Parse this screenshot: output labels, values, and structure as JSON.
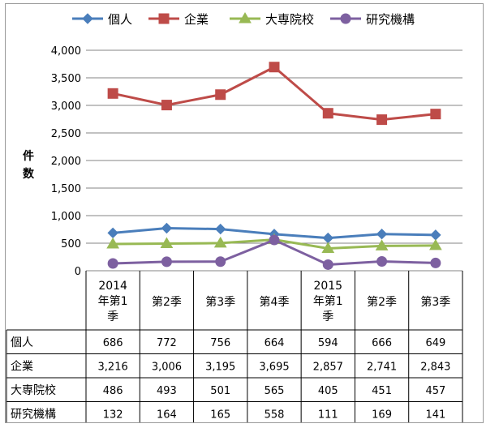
{
  "chart_data": {
    "type": "line",
    "categories": [
      [
        "2014",
        "年第1",
        "季"
      ],
      [
        "第2季"
      ],
      [
        "第3季"
      ],
      [
        "第4季"
      ],
      [
        "2015",
        "年第1",
        "季"
      ],
      [
        "第2季"
      ],
      [
        "第3季"
      ]
    ],
    "ylabel": [
      "件",
      "数"
    ],
    "ylim": [
      0,
      4000
    ],
    "yticks": [
      0,
      500,
      1000,
      1500,
      2000,
      2500,
      3000,
      3500,
      4000
    ],
    "ytick_labels": [
      "0",
      "500",
      "1,000",
      "1,500",
      "2,000",
      "2,500",
      "3,000",
      "3,500",
      "4,000"
    ],
    "grid": true,
    "legend_position": "top",
    "series": [
      {
        "name": "個人",
        "color": "#4a7ebb",
        "marker": "diamond",
        "values": [
          686,
          772,
          756,
          664,
          594,
          666,
          649
        ],
        "labels": [
          "686",
          "772",
          "756",
          "664",
          "594",
          "666",
          "649"
        ]
      },
      {
        "name": "企業",
        "color": "#be4b48",
        "marker": "square",
        "values": [
          3216,
          3006,
          3195,
          3695,
          2857,
          2741,
          2843
        ],
        "labels": [
          "3,216",
          "3,006",
          "3,195",
          "3,695",
          "2,857",
          "2,741",
          "2,843"
        ]
      },
      {
        "name": "大専院校",
        "color": "#98b954",
        "marker": "triangle",
        "values": [
          486,
          493,
          501,
          565,
          405,
          451,
          457
        ],
        "labels": [
          "486",
          "493",
          "501",
          "565",
          "405",
          "451",
          "457"
        ]
      },
      {
        "name": "研究機構",
        "color": "#7d60a0",
        "marker": "circle",
        "values": [
          132,
          164,
          165,
          558,
          111,
          169,
          141
        ],
        "labels": [
          "132",
          "164",
          "165",
          "558",
          "111",
          "169",
          "141"
        ]
      }
    ]
  }
}
